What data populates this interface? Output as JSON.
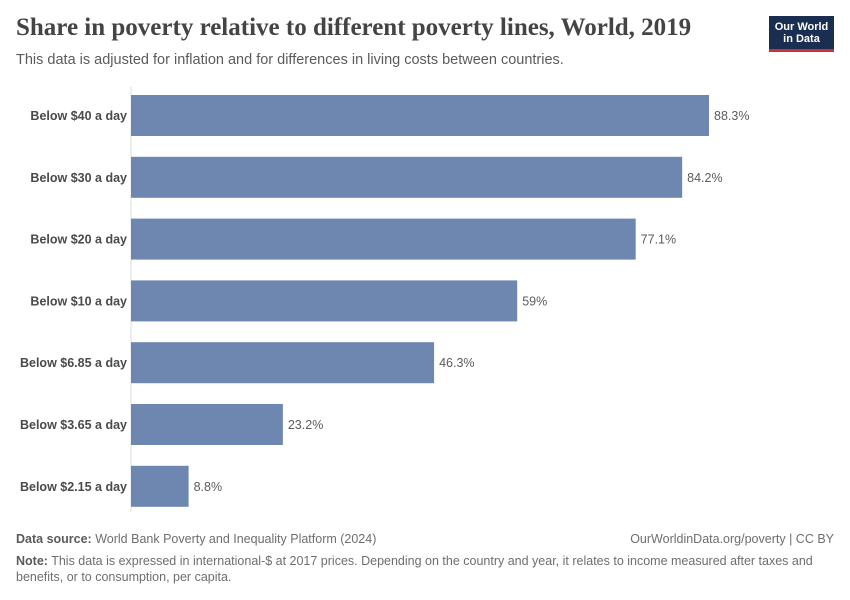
{
  "header": {
    "title": "Share in poverty relative to different poverty lines, World, 2019",
    "subtitle": "This data is adjusted for inflation and for differences in living costs between countries."
  },
  "logo": {
    "line1": "Our World",
    "line2": "in Data"
  },
  "footer": {
    "source_label": "Data source:",
    "source_text": "World Bank Poverty and Inequality Platform (2024)",
    "credit": "OurWorldinData.org/poverty | CC BY",
    "note_label": "Note:",
    "note_text": "This data is expressed in international-$ at 2017 prices. Depending on the country and year, it relates to income measured after taxes and benefits, or to consumption, per capita."
  },
  "colors": {
    "bar": "#6e87b0",
    "text": "#4a4a4a"
  },
  "chart_data": {
    "type": "bar",
    "orientation": "horizontal",
    "title": "Share in poverty relative to different poverty lines, World, 2019",
    "categories": [
      "Below $40 a day",
      "Below $30 a day",
      "Below $20 a day",
      "Below $10 a day",
      "Below $6.85 a day",
      "Below $3.65 a day",
      "Below $2.15 a day"
    ],
    "values": [
      88.3,
      84.2,
      77.1,
      59,
      46.3,
      23.2,
      8.8
    ],
    "value_labels": [
      "88.3%",
      "84.2%",
      "77.1%",
      "59%",
      "46.3%",
      "23.2%",
      "8.8%"
    ],
    "unit": "%",
    "xlim": [
      0,
      88.3
    ],
    "grid": false,
    "xlabel": "",
    "ylabel": ""
  }
}
